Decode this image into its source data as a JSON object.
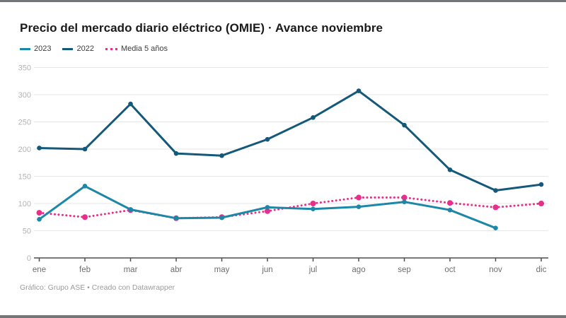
{
  "page": {
    "title": "Precio del mercado diario eléctrico (OMIE) · Avance noviembre",
    "footer": "Gráfico: Grupo ASE • Creado con Datawrapper"
  },
  "chart_data": {
    "type": "line",
    "title": "Precio del mercado diario eléctrico (OMIE) · Avance noviembre",
    "categories": [
      "ene",
      "feb",
      "mar",
      "abr",
      "may",
      "jun",
      "jul",
      "ago",
      "sep",
      "oct",
      "nov",
      "dic"
    ],
    "series": [
      {
        "name": "2023",
        "color": "#1d87a8",
        "style": "solid",
        "values": [
          71,
          132,
          89,
          73,
          74,
          93,
          90,
          94,
          103,
          88,
          55,
          null
        ]
      },
      {
        "name": "2022",
        "color": "#15597a",
        "style": "solid",
        "values": [
          202,
          200,
          283,
          192,
          188,
          218,
          258,
          307,
          244,
          162,
          124,
          135
        ]
      },
      {
        "name": "Media 5 años",
        "color": "#e62e8a",
        "style": "dotted",
        "values": [
          83,
          75,
          88,
          73,
          75,
          86,
          100,
          111,
          111,
          101,
          93,
          100
        ]
      }
    ],
    "ylim": [
      0,
      350
    ],
    "yticks": [
      0,
      50,
      100,
      150,
      200,
      250,
      300,
      350
    ],
    "grid": "horizontal",
    "legend_position": "top",
    "colors": {
      "gridline": "#e6e6e6",
      "axis_line": "#4d4d4d",
      "y_tick_label": "#b3b3b3",
      "x_tick_label": "#6e6e6e"
    }
  }
}
